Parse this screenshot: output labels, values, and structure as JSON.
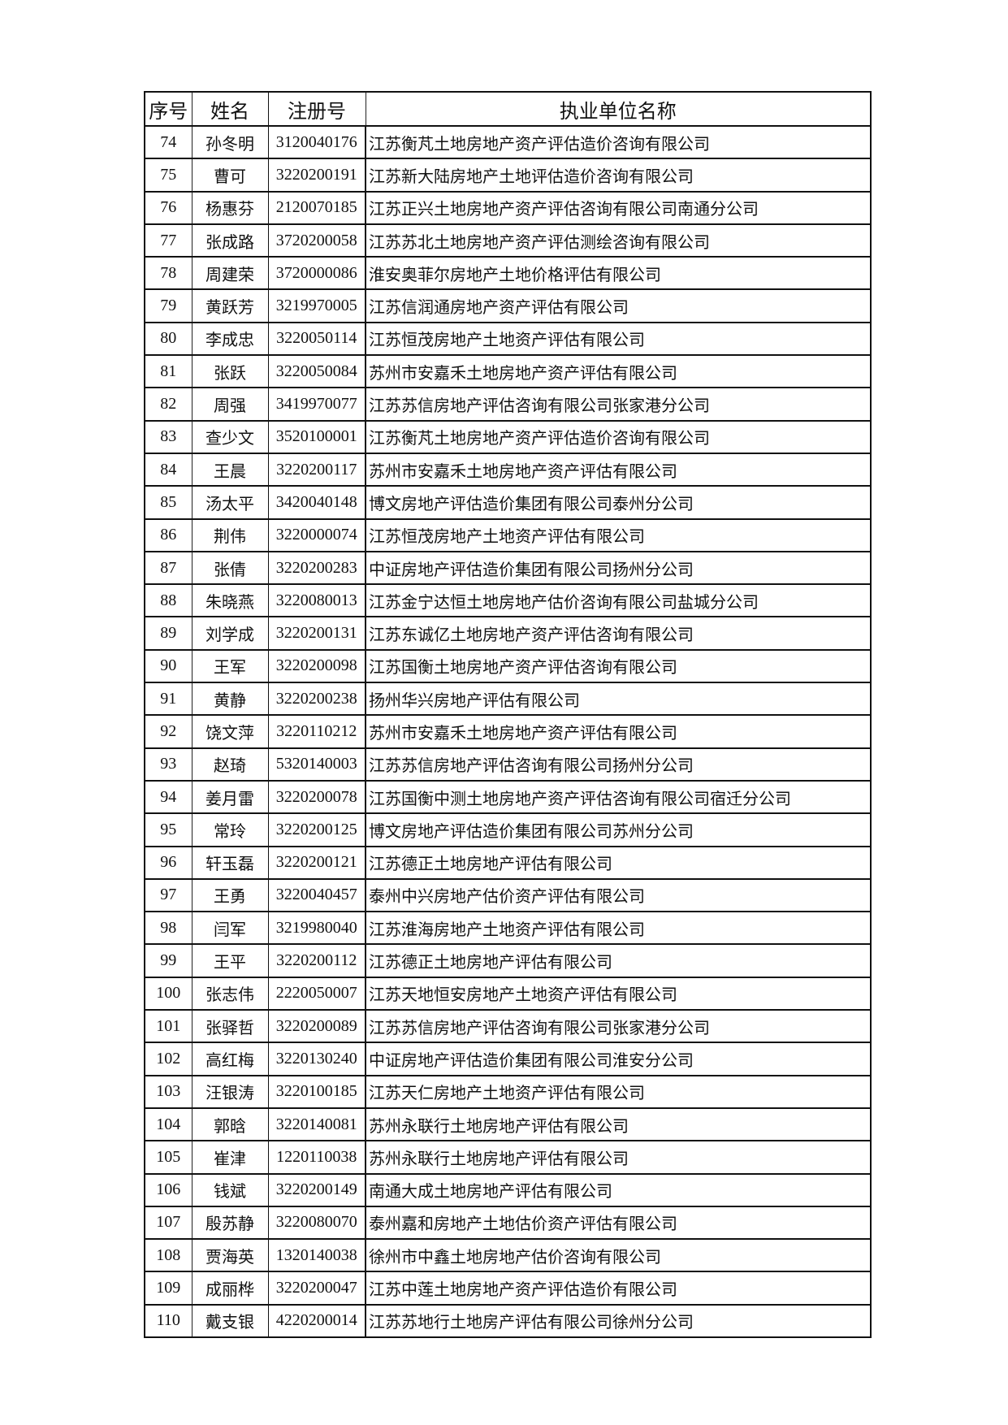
{
  "headers": {
    "no": "序号",
    "name": "姓名",
    "reg": "注册号",
    "company": "执业单位名称"
  },
  "rows": [
    {
      "no": "74",
      "name": "孙冬明",
      "reg": "3120040176",
      "company": "江苏衡芃土地房地产资产评估造价咨询有限公司"
    },
    {
      "no": "75",
      "name": "曹可",
      "reg": "3220200191",
      "company": "江苏新大陆房地产土地评估造价咨询有限公司"
    },
    {
      "no": "76",
      "name": "杨惠芬",
      "reg": "2120070185",
      "company": "江苏正兴土地房地产资产评估咨询有限公司南通分公司"
    },
    {
      "no": "77",
      "name": "张成路",
      "reg": "3720200058",
      "company": "江苏苏北土地房地产资产评估测绘咨询有限公司"
    },
    {
      "no": "78",
      "name": "周建荣",
      "reg": "3720000086",
      "company": "淮安奥菲尔房地产土地价格评估有限公司"
    },
    {
      "no": "79",
      "name": "黄跃芳",
      "reg": "3219970005",
      "company": "江苏信润通房地产资产评估有限公司"
    },
    {
      "no": "80",
      "name": "李成忠",
      "reg": "3220050114",
      "company": "江苏恒茂房地产土地资产评估有限公司"
    },
    {
      "no": "81",
      "name": "张跃",
      "reg": "3220050084",
      "company": "苏州市安嘉禾土地房地产资产评估有限公司"
    },
    {
      "no": "82",
      "name": "周强",
      "reg": "3419970077",
      "company": "江苏苏信房地产评估咨询有限公司张家港分公司"
    },
    {
      "no": "83",
      "name": "查少文",
      "reg": "3520100001",
      "company": "江苏衡芃土地房地产资产评估造价咨询有限公司"
    },
    {
      "no": "84",
      "name": "王晨",
      "reg": "3220200117",
      "company": "苏州市安嘉禾土地房地产资产评估有限公司"
    },
    {
      "no": "85",
      "name": "汤太平",
      "reg": "3420040148",
      "company": "博文房地产评估造价集团有限公司泰州分公司"
    },
    {
      "no": "86",
      "name": "荆伟",
      "reg": "3220000074",
      "company": "江苏恒茂房地产土地资产评估有限公司"
    },
    {
      "no": "87",
      "name": "张倩",
      "reg": "3220200283",
      "company": "中证房地产评估造价集团有限公司扬州分公司"
    },
    {
      "no": "88",
      "name": "朱晓燕",
      "reg": "3220080013",
      "company": "江苏金宁达恒土地房地产估价咨询有限公司盐城分公司"
    },
    {
      "no": "89",
      "name": "刘学成",
      "reg": "3220200131",
      "company": "江苏东诚亿土地房地产资产评估咨询有限公司"
    },
    {
      "no": "90",
      "name": "王军",
      "reg": "3220200098",
      "company": "江苏国衡土地房地产资产评估咨询有限公司"
    },
    {
      "no": "91",
      "name": "黄静",
      "reg": "3220200238",
      "company": "扬州华兴房地产评估有限公司"
    },
    {
      "no": "92",
      "name": "饶文萍",
      "reg": "3220110212",
      "company": "苏州市安嘉禾土地房地产资产评估有限公司"
    },
    {
      "no": "93",
      "name": "赵琦",
      "reg": "5320140003",
      "company": "江苏苏信房地产评估咨询有限公司扬州分公司"
    },
    {
      "no": "94",
      "name": "姜月雷",
      "reg": "3220200078",
      "company": "江苏国衡中测土地房地产资产评估咨询有限公司宿迁分公司"
    },
    {
      "no": "95",
      "name": "常玲",
      "reg": "3220200125",
      "company": "博文房地产评估造价集团有限公司苏州分公司"
    },
    {
      "no": "96",
      "name": "轩玉磊",
      "reg": "3220200121",
      "company": "江苏德正土地房地产评估有限公司"
    },
    {
      "no": "97",
      "name": "王勇",
      "reg": "3220040457",
      "company": "泰州中兴房地产估价资产评估有限公司"
    },
    {
      "no": "98",
      "name": "闫军",
      "reg": "3219980040",
      "company": "江苏淮海房地产土地资产评估有限公司"
    },
    {
      "no": "99",
      "name": "王平",
      "reg": "3220200112",
      "company": "江苏德正土地房地产评估有限公司"
    },
    {
      "no": "100",
      "name": "张志伟",
      "reg": "2220050007",
      "company": "江苏天地恒安房地产土地资产评估有限公司"
    },
    {
      "no": "101",
      "name": "张驿哲",
      "reg": "3220200089",
      "company": "江苏苏信房地产评估咨询有限公司张家港分公司"
    },
    {
      "no": "102",
      "name": "高红梅",
      "reg": "3220130240",
      "company": "中证房地产评估造价集团有限公司淮安分公司"
    },
    {
      "no": "103",
      "name": "汪银涛",
      "reg": "3220100185",
      "company": "江苏天仁房地产土地资产评估有限公司"
    },
    {
      "no": "104",
      "name": "郭晗",
      "reg": "3220140081",
      "company": "苏州永联行土地房地产评估有限公司"
    },
    {
      "no": "105",
      "name": "崔津",
      "reg": "1220110038",
      "company": "苏州永联行土地房地产评估有限公司"
    },
    {
      "no": "106",
      "name": "钱斌",
      "reg": "3220200149",
      "company": "南通大成土地房地产评估有限公司"
    },
    {
      "no": "107",
      "name": "殷苏静",
      "reg": "3220080070",
      "company": "泰州嘉和房地产土地估价资产评估有限公司"
    },
    {
      "no": "108",
      "name": "贾海英",
      "reg": "1320140038",
      "company": "徐州市中鑫土地房地产估价咨询有限公司"
    },
    {
      "no": "109",
      "name": "成丽桦",
      "reg": "3220200047",
      "company": "江苏中莲土地房地产资产评估造价有限公司"
    },
    {
      "no": "110",
      "name": "戴支银",
      "reg": "4220200014",
      "company": "江苏苏地行土地房产评估有限公司徐州分公司"
    }
  ]
}
